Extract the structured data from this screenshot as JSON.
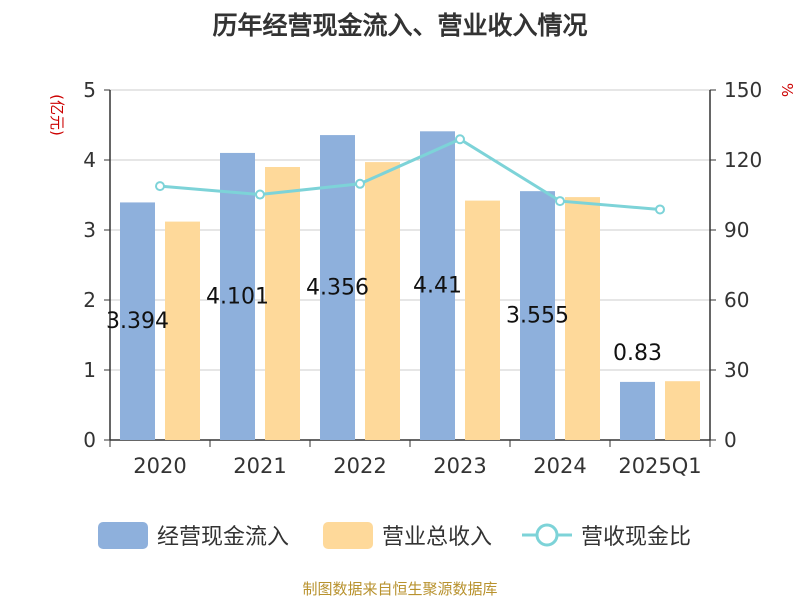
{
  "chart_data": {
    "type": "bar",
    "title": "历年经营现金流入、营业收入情况",
    "categories": [
      "2020",
      "2021",
      "2022",
      "2023",
      "2024",
      "2025Q1"
    ],
    "series": [
      {
        "name": "经营现金流入",
        "type": "bar",
        "axis": "left",
        "color": "#8eb0dc",
        "values": [
          3.394,
          4.101,
          4.356,
          4.41,
          3.555,
          0.83
        ],
        "labels": [
          "3.394",
          "4.101",
          "4.356",
          "4.41",
          "3.555",
          "0.83"
        ]
      },
      {
        "name": "营业总收入",
        "type": "bar",
        "axis": "left",
        "color": "#fed99a",
        "values": [
          3.12,
          3.9,
          3.97,
          3.42,
          3.47,
          0.84
        ]
      },
      {
        "name": "营收现金比",
        "type": "line",
        "axis": "right",
        "color": "#7dd3d8",
        "values": [
          108.8,
          105.2,
          109.8,
          128.9,
          102.4,
          98.8
        ]
      }
    ],
    "y_left": {
      "label": "(亿元)",
      "ylim": [
        0,
        5
      ],
      "ticks": [
        "0",
        "1",
        "2",
        "3",
        "4",
        "5"
      ]
    },
    "y_right": {
      "label": "%",
      "ylim": [
        0,
        150
      ],
      "ticks": [
        "0",
        "30",
        "60",
        "90",
        "120",
        "150"
      ]
    },
    "grid": true,
    "legend_position": "bottom",
    "source": "制图数据来自恒生聚源数据库"
  }
}
